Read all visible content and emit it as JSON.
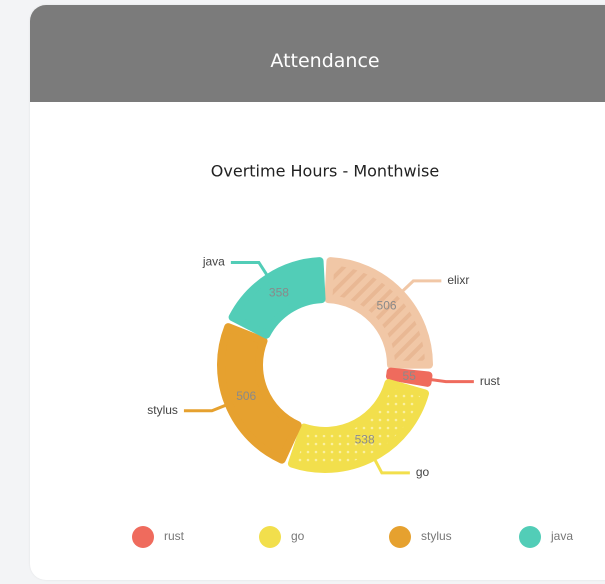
{
  "header": {
    "title": "Attendance"
  },
  "chart_data": {
    "type": "donut",
    "title": "Overtime Hours - Monthwise",
    "categories": [
      "elixr",
      "rust",
      "go",
      "stylus",
      "java"
    ],
    "values": [
      506,
      55,
      538,
      506,
      358
    ],
    "colors": [
      "#f1c7a6",
      "#ef6b5d",
      "#f2df4c",
      "#e6a12f",
      "#52cdb7"
    ],
    "patterns": [
      "stripes",
      null,
      "dots",
      null,
      null
    ]
  }
}
